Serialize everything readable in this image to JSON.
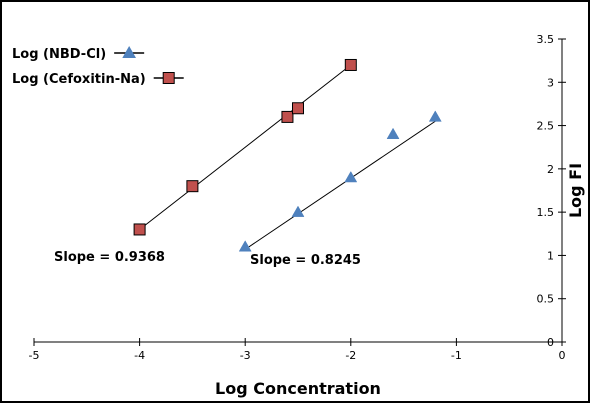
{
  "chart_data": {
    "type": "scatter",
    "xlabel": "Log Concentration",
    "ylabel": "Log FI",
    "xlim": [
      -5,
      0
    ],
    "ylim": [
      0,
      3.5
    ],
    "x_ticks": [
      "-5",
      "-4",
      "-3",
      "-2",
      "-1",
      "0"
    ],
    "y_ticks": [
      "0",
      "0.5",
      "1",
      "1.5",
      "2",
      "2.5",
      "3",
      "3.5"
    ],
    "grid": false,
    "legend_position": "top-left",
    "series": [
      {
        "name": "Log (NBD-Cl)",
        "marker": "triangle",
        "color": "#4f81bd",
        "x": [
          -3,
          -2.5,
          -2,
          -1.6,
          -1.2
        ],
        "y": [
          1.1,
          1.5,
          1.9,
          2.4,
          2.6
        ],
        "fit_line": {
          "x": [
            -3,
            -1.2
          ],
          "y": [
            1.07,
            2.55
          ]
        },
        "annotation": "Slope = 0.8245"
      },
      {
        "name": "Log (Cefoxitin-Na)",
        "marker": "square",
        "color": "#c0504d",
        "x": [
          -4,
          -3.5,
          -2.6,
          -2.5,
          -2
        ],
        "y": [
          1.3,
          1.8,
          2.6,
          2.7,
          3.2
        ],
        "fit_line": {
          "x": [
            -4,
            -2
          ],
          "y": [
            1.3,
            3.2
          ]
        },
        "annotation": "Slope = 0.9368"
      }
    ]
  }
}
